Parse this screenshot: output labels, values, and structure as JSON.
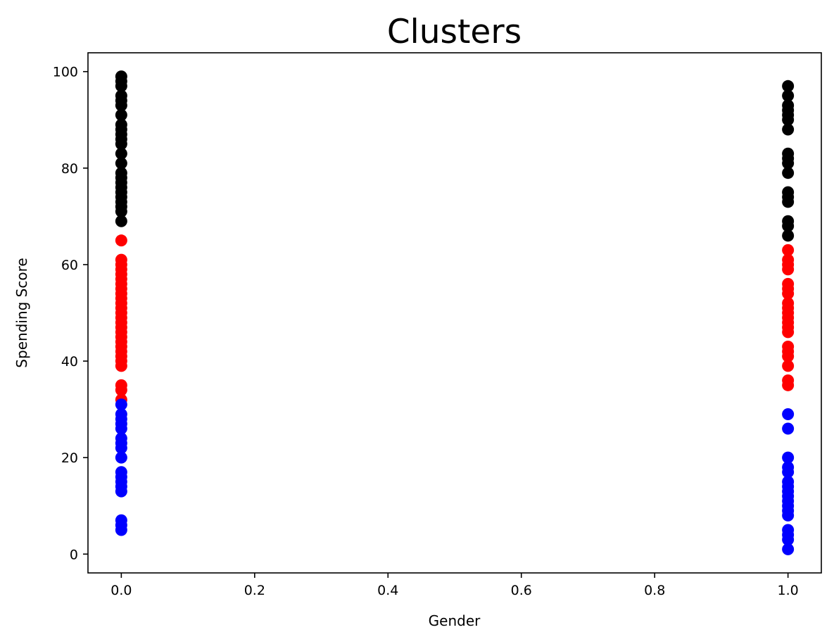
{
  "chart_data": {
    "type": "scatter",
    "title": "Clusters",
    "xlabel": "Gender",
    "ylabel": "Spending Score",
    "xlim": [
      -0.05,
      1.05
    ],
    "ylim": [
      -3.9,
      103.9
    ],
    "xticks": [
      0.0,
      0.2,
      0.4,
      0.6,
      0.8,
      1.0
    ],
    "xtick_labels": [
      "0.0",
      "0.2",
      "0.4",
      "0.6",
      "0.8",
      "1.0"
    ],
    "yticks": [
      0,
      20,
      40,
      60,
      80,
      100
    ],
    "ytick_labels": [
      "0",
      "20",
      "40",
      "60",
      "80",
      "100"
    ],
    "grid": false,
    "legend": "none",
    "series": [
      {
        "color": "#000000",
        "points": [
          [
            0,
            69
          ],
          [
            0,
            71
          ],
          [
            0,
            72
          ],
          [
            0,
            73
          ],
          [
            0,
            74
          ],
          [
            0,
            75
          ],
          [
            0,
            76
          ],
          [
            0,
            77
          ],
          [
            0,
            78
          ],
          [
            0,
            79
          ],
          [
            0,
            81
          ],
          [
            0,
            83
          ],
          [
            0,
            85
          ],
          [
            0,
            86
          ],
          [
            0,
            87
          ],
          [
            0,
            88
          ],
          [
            0,
            89
          ],
          [
            0,
            91
          ],
          [
            0,
            93
          ],
          [
            0,
            94
          ],
          [
            0,
            95
          ],
          [
            0,
            97
          ],
          [
            0,
            98
          ],
          [
            0,
            99
          ],
          [
            1,
            66
          ],
          [
            1,
            68
          ],
          [
            1,
            69
          ],
          [
            1,
            73
          ],
          [
            1,
            74
          ],
          [
            1,
            75
          ],
          [
            1,
            79
          ],
          [
            1,
            81
          ],
          [
            1,
            82
          ],
          [
            1,
            83
          ],
          [
            1,
            88
          ],
          [
            1,
            90
          ],
          [
            1,
            91
          ],
          [
            1,
            92
          ],
          [
            1,
            93
          ],
          [
            1,
            95
          ],
          [
            1,
            97
          ]
        ]
      },
      {
        "color": "#ff0000",
        "points": [
          [
            0,
            32
          ],
          [
            0,
            34
          ],
          [
            0,
            35
          ],
          [
            0,
            39
          ],
          [
            0,
            40
          ],
          [
            0,
            41
          ],
          [
            0,
            42
          ],
          [
            0,
            43
          ],
          [
            0,
            44
          ],
          [
            0,
            45
          ],
          [
            0,
            46
          ],
          [
            0,
            47
          ],
          [
            0,
            48
          ],
          [
            0,
            49
          ],
          [
            0,
            50
          ],
          [
            0,
            51
          ],
          [
            0,
            52
          ],
          [
            0,
            53
          ],
          [
            0,
            54
          ],
          [
            0,
            55
          ],
          [
            0,
            56
          ],
          [
            0,
            57
          ],
          [
            0,
            58
          ],
          [
            0,
            59
          ],
          [
            0,
            60
          ],
          [
            0,
            61
          ],
          [
            0,
            65
          ],
          [
            1,
            35
          ],
          [
            1,
            36
          ],
          [
            1,
            39
          ],
          [
            1,
            41
          ],
          [
            1,
            42
          ],
          [
            1,
            43
          ],
          [
            1,
            46
          ],
          [
            1,
            47
          ],
          [
            1,
            48
          ],
          [
            1,
            49
          ],
          [
            1,
            50
          ],
          [
            1,
            51
          ],
          [
            1,
            52
          ],
          [
            1,
            54
          ],
          [
            1,
            55
          ],
          [
            1,
            56
          ],
          [
            1,
            59
          ],
          [
            1,
            60
          ],
          [
            1,
            61
          ],
          [
            1,
            63
          ]
        ]
      },
      {
        "color": "#0000ff",
        "points": [
          [
            0,
            5
          ],
          [
            0,
            6
          ],
          [
            0,
            7
          ],
          [
            0,
            13
          ],
          [
            0,
            14
          ],
          [
            0,
            15
          ],
          [
            0,
            16
          ],
          [
            0,
            17
          ],
          [
            0,
            20
          ],
          [
            0,
            22
          ],
          [
            0,
            23
          ],
          [
            0,
            24
          ],
          [
            0,
            26
          ],
          [
            0,
            27
          ],
          [
            0,
            28
          ],
          [
            0,
            29
          ],
          [
            0,
            31
          ],
          [
            1,
            1
          ],
          [
            1,
            3
          ],
          [
            1,
            4
          ],
          [
            1,
            5
          ],
          [
            1,
            8
          ],
          [
            1,
            9
          ],
          [
            1,
            10
          ],
          [
            1,
            11
          ],
          [
            1,
            12
          ],
          [
            1,
            13
          ],
          [
            1,
            14
          ],
          [
            1,
            15
          ],
          [
            1,
            17
          ],
          [
            1,
            18
          ],
          [
            1,
            20
          ],
          [
            1,
            26
          ],
          [
            1,
            29
          ]
        ]
      }
    ]
  }
}
